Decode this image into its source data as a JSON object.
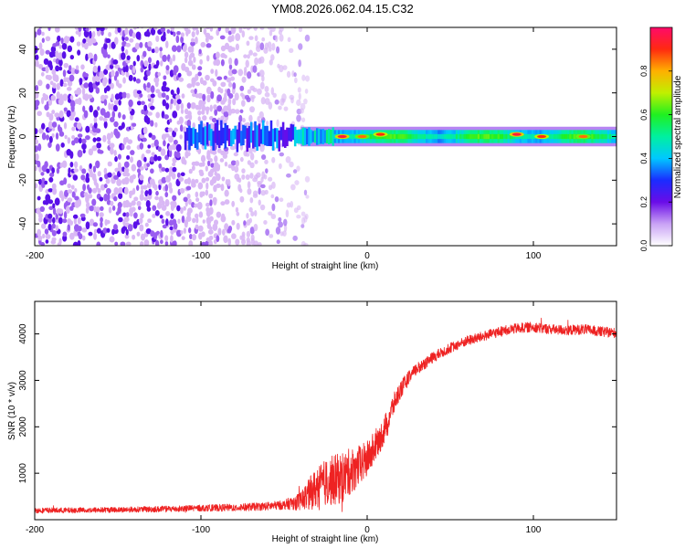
{
  "title": "YM08.2026.062.04.15.C32",
  "colors": {
    "snr_line": "#ee2222",
    "axis": "#000000",
    "spectro_light": "#d9b8f5",
    "spectro_mid": "#9a5df0",
    "spectro_dark": "#5a10e8"
  },
  "chart_data": [
    {
      "type": "heatmap",
      "name": "spectrogram",
      "xlabel": "Height of straight line (km)",
      "ylabel": "Frequency (Hz)",
      "xlim": [
        -200,
        150
      ],
      "ylim": [
        -50,
        50
      ],
      "xticks": [
        -200,
        -100,
        0,
        100
      ],
      "xtick_labels": [
        "-200",
        "-100",
        "0",
        "100"
      ],
      "yticks": [
        -40,
        -20,
        0,
        20,
        40
      ],
      "ytick_labels": [
        "-40",
        "-20",
        "0",
        "20",
        "40"
      ],
      "noise_region_x": [
        -200,
        -45
      ],
      "signal_band": {
        "x_start": -110,
        "x_end": 150,
        "freq_halfwidth_hz": 3
      },
      "peaks": [
        {
          "x": -15,
          "freq": 0,
          "amplitude": 0.95
        },
        {
          "x": -3,
          "freq": 0,
          "amplitude": 0.85
        },
        {
          "x": 8,
          "freq": 1,
          "amplitude": 0.9
        },
        {
          "x": 90,
          "freq": 1,
          "amplitude": 0.95
        },
        {
          "x": 105,
          "freq": 0,
          "amplitude": 0.9
        },
        {
          "x": 130,
          "freq": 0,
          "amplitude": 0.85
        }
      ],
      "colorbar": {
        "label": "Normalized spectral amplitude",
        "range": [
          0,
          1
        ],
        "ticks": [
          0.0,
          0.2,
          0.4,
          0.6,
          0.8
        ],
        "tick_labels": [
          "0.0",
          "0.2",
          "0.4",
          "0.6",
          "0.8"
        ]
      }
    },
    {
      "type": "line",
      "name": "snr",
      "xlabel": "Height of straight line (km)",
      "ylabel": "SNR (10 * v/v)",
      "xlim": [
        -200,
        150
      ],
      "ylim": [
        0,
        4700
      ],
      "xticks": [
        -200,
        -100,
        0,
        100
      ],
      "xtick_labels": [
        "-200",
        "-100",
        "0",
        "100"
      ],
      "yticks": [
        1000,
        2000,
        3000,
        4000
      ],
      "ytick_labels": [
        "1000",
        "2000",
        "3000",
        "4000"
      ],
      "series": [
        {
          "name": "SNR",
          "x": [
            -200,
            -180,
            -160,
            -140,
            -120,
            -100,
            -80,
            -60,
            -50,
            -40,
            -35,
            -30,
            -25,
            -20,
            -15,
            -10,
            -5,
            0,
            5,
            10,
            15,
            20,
            25,
            30,
            40,
            50,
            60,
            70,
            80,
            90,
            100,
            110,
            120,
            130,
            140,
            150
          ],
          "values": [
            200,
            200,
            210,
            220,
            230,
            250,
            260,
            290,
            320,
            400,
            550,
            700,
            800,
            850,
            900,
            1050,
            1150,
            1300,
            1600,
            1900,
            2400,
            2800,
            3050,
            3250,
            3500,
            3700,
            3850,
            3950,
            4050,
            4120,
            4150,
            4100,
            4080,
            4100,
            4050,
            4020
          ],
          "noise_amplitude": [
            60,
            60,
            60,
            60,
            70,
            70,
            80,
            90,
            100,
            200,
            350,
            450,
            500,
            550,
            550,
            500,
            450,
            400,
            350,
            300,
            250,
            200,
            150,
            130,
            120,
            110,
            110,
            110,
            110,
            110,
            110,
            110,
            110,
            110,
            110,
            110
          ]
        }
      ]
    }
  ]
}
